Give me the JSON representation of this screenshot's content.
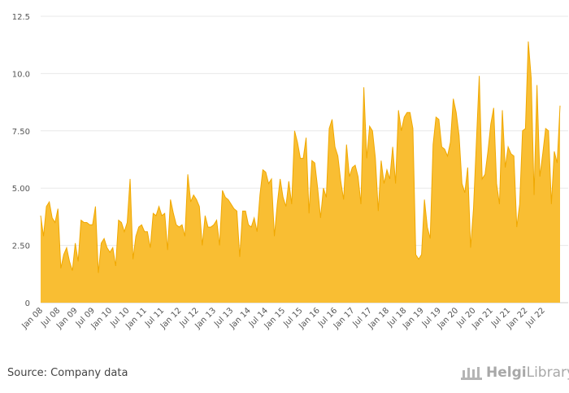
{
  "chart_data": {
    "type": "area",
    "color": "#F9BE33",
    "line_color": "#F0A800",
    "grid": true,
    "ylim": [
      0,
      12.5
    ],
    "yticks": [
      {
        "value": 0,
        "label": "0"
      },
      {
        "value": 2.5,
        "label": "2.50"
      },
      {
        "value": 5,
        "label": "5.00"
      },
      {
        "value": 7.5,
        "label": "7.50"
      },
      {
        "value": 10,
        "label": "10.0"
      },
      {
        "value": 12.5,
        "label": "12.5"
      }
    ],
    "xticks": [
      "Jan 08",
      "Jul 08",
      "Jan 09",
      "Jul 09",
      "Jan 10",
      "Jul 10",
      "Jan 11",
      "Jul 11",
      "Jan 12",
      "Jul 12",
      "Jan 13",
      "Jul 13",
      "Jan 14",
      "Jul 14",
      "Jan 15",
      "Jul 15",
      "Jan 16",
      "Jul 16",
      "Jan 17",
      "Jul 17",
      "Jan 18",
      "Jul 18",
      "Jan 19",
      "Jul 19",
      "Jan 20",
      "Jul 20",
      "Jan 21",
      "Jul 21",
      "Jan 22",
      "Jul 22"
    ],
    "x_start": "Jan 08",
    "x_end": "Oct 22",
    "values": [
      3.8,
      2.9,
      4.2,
      4.4,
      3.7,
      3.5,
      4.1,
      1.5,
      2.1,
      2.4,
      1.8,
      1.4,
      2.6,
      1.8,
      3.6,
      3.5,
      3.5,
      3.4,
      3.4,
      4.2,
      1.3,
      2.6,
      2.8,
      2.4,
      2.2,
      2.4,
      1.6,
      3.6,
      3.5,
      3.1,
      3.5,
      5.4,
      1.9,
      2.9,
      3.3,
      3.4,
      3.1,
      3.1,
      2.4,
      3.9,
      3.8,
      4.2,
      3.8,
      3.9,
      2.3,
      4.5,
      3.9,
      3.4,
      3.3,
      3.4,
      2.9,
      5.6,
      4.4,
      4.7,
      4.5,
      4.2,
      2.5,
      3.8,
      3.3,
      3.3,
      3.4,
      3.6,
      2.5,
      4.9,
      4.6,
      4.5,
      4.3,
      4.1,
      4.0,
      2.0,
      4.0,
      4.0,
      3.4,
      3.3,
      3.7,
      3.1,
      4.7,
      5.8,
      5.7,
      5.2,
      5.4,
      2.9,
      4.3,
      5.4,
      4.6,
      4.2,
      5.3,
      4.3,
      7.5,
      7.0,
      6.3,
      6.3,
      7.2,
      3.9,
      6.2,
      6.1,
      5.0,
      3.7,
      5.0,
      4.6,
      7.6,
      8.0,
      6.8,
      6.4,
      5.3,
      4.5,
      6.9,
      5.5,
      5.9,
      6.0,
      5.5,
      4.3,
      9.4,
      6.3,
      7.7,
      7.5,
      6.3,
      4.0,
      6.2,
      5.2,
      5.8,
      5.4,
      6.8,
      5.2,
      8.4,
      7.5,
      8.1,
      8.3,
      8.3,
      7.6,
      2.1,
      1.9,
      2.1,
      4.5,
      3.3,
      2.8,
      6.9,
      8.1,
      8.0,
      6.8,
      6.7,
      6.4,
      7.0,
      8.9,
      8.3,
      7.3,
      5.2,
      4.8,
      5.9,
      2.4,
      4.1,
      7.0,
      9.9,
      5.4,
      5.6,
      6.6,
      7.8,
      8.5,
      5.2,
      4.3,
      8.4,
      5.9,
      6.8,
      6.5,
      6.4,
      3.3,
      4.3,
      7.5,
      7.6,
      11.4,
      9.8,
      4.7,
      9.5,
      5.5,
      6.5,
      7.6,
      7.5,
      4.3,
      6.6,
      6.1,
      8.6
    ]
  },
  "footer": {
    "source": "Source: Company data",
    "logo_part1": "Helgi",
    "logo_part2": "Library",
    "logo_dot": "."
  }
}
